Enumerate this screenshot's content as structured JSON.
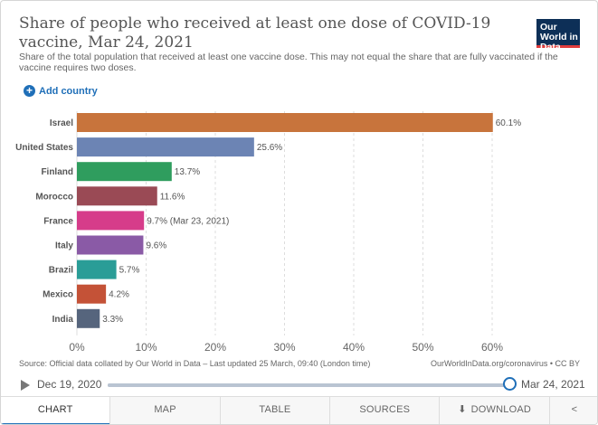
{
  "header": {
    "title": "Share of people who received at least one dose of COVID-19 vaccine, Mar 24, 2021",
    "subtitle": "Share of the total population that received at least one vaccine dose. This may not equal the share that are fully vaccinated if the vaccine requires two doses.",
    "logo": "Our World in Data"
  },
  "controls": {
    "add_country": "Add country"
  },
  "footer": {
    "source": "Source: Official data collated by Our World in Data – Last updated 25 March, 09:40 (London time)",
    "license": "OurWorldInData.org/coronavirus • CC BY"
  },
  "timeline": {
    "start": "Dec 19, 2020",
    "end": "Mar 24, 2021"
  },
  "tabs": [
    "CHART",
    "MAP",
    "TABLE",
    "SOURCES",
    "DOWNLOAD"
  ],
  "colors": {
    "accent": "#1f6fb8",
    "logo_bg": "#0d2f57"
  },
  "chart_data": {
    "type": "bar",
    "orientation": "horizontal",
    "categories": [
      "Israel",
      "United States",
      "Finland",
      "Morocco",
      "France",
      "Italy",
      "Brazil",
      "Mexico",
      "India"
    ],
    "values": [
      60.1,
      25.6,
      13.7,
      11.6,
      9.7,
      9.6,
      5.7,
      4.2,
      3.3
    ],
    "value_labels": [
      "60.1%",
      "25.6%",
      "13.7%",
      "11.6%",
      "9.7% (Mar 23, 2021)",
      "9.6%",
      "5.7%",
      "4.2%",
      "3.3%"
    ],
    "colors": [
      "#c8743c",
      "#6c84b4",
      "#2f9d5e",
      "#9a4a55",
      "#d63c8a",
      "#8a5aa6",
      "#2a9d97",
      "#c45237",
      "#56657d"
    ],
    "xlim": [
      0,
      60
    ],
    "xticks": [
      "0%",
      "10%",
      "20%",
      "30%",
      "40%",
      "50%",
      "60%"
    ],
    "grid": true
  }
}
